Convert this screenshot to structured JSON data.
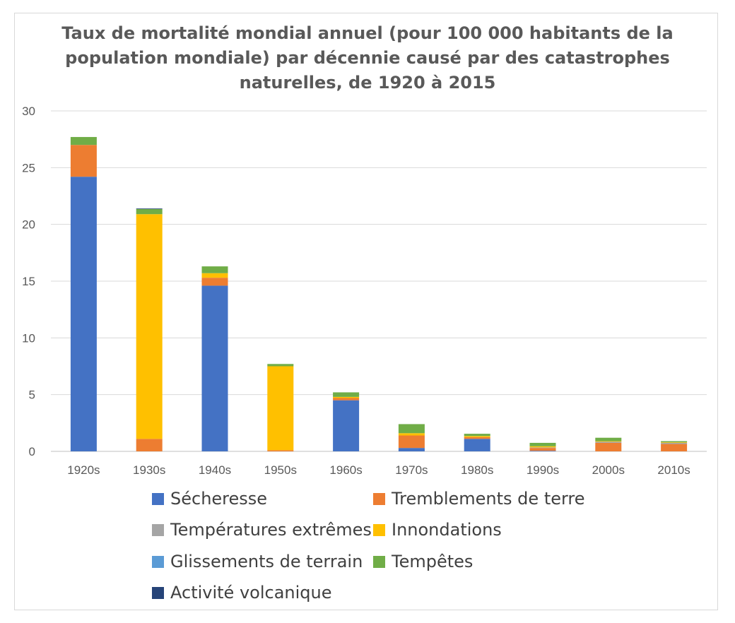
{
  "chart_data": {
    "type": "bar",
    "stacked": true,
    "title_lines": [
      "Taux de mortalité mondial annuel (pour 100 000 habitants de la",
      "population mondiale) par décennie causé par des catastrophes",
      "naturelles, de 1920 à 2015"
    ],
    "xlabel": "",
    "ylabel": "",
    "ylim": [
      0,
      30
    ],
    "yticks": [
      "0",
      "5",
      "10",
      "15",
      "20",
      "25",
      "30"
    ],
    "grid": true,
    "legend_position": "bottom",
    "categories": [
      "1920s",
      "1930s",
      "1940s",
      "1950s",
      "1960s",
      "1970s",
      "1980s",
      "1990s",
      "2000s",
      "2010s"
    ],
    "series": [
      {
        "name": "Sécheresse",
        "color": "#4472c4",
        "values": [
          24.2,
          0.0,
          14.6,
          0.0,
          4.5,
          0.3,
          1.1,
          0.05,
          0.0,
          0.0
        ]
      },
      {
        "name": "Tremblements de terre",
        "color": "#ed7d31",
        "values": [
          2.8,
          1.1,
          0.7,
          0.1,
          0.2,
          1.1,
          0.15,
          0.25,
          0.75,
          0.65
        ]
      },
      {
        "name": "Températures extrêmes",
        "color": "#a5a5a5",
        "values": [
          0.0,
          0.0,
          0.0,
          0.0,
          0.0,
          0.0,
          0.0,
          0.05,
          0.1,
          0.1
        ]
      },
      {
        "name": "Innondations",
        "color": "#ffc000",
        "values": [
          0.0,
          19.8,
          0.4,
          7.4,
          0.1,
          0.2,
          0.1,
          0.1,
          0.05,
          0.05
        ]
      },
      {
        "name": "Glissements de terrain",
        "color": "#5b9bd5",
        "values": [
          0.0,
          0.0,
          0.0,
          0.0,
          0.0,
          0.0,
          0.0,
          0.0,
          0.0,
          0.0
        ]
      },
      {
        "name": "Tempêtes",
        "color": "#70ad47",
        "values": [
          0.7,
          0.45,
          0.6,
          0.2,
          0.4,
          0.8,
          0.2,
          0.3,
          0.3,
          0.1
        ]
      },
      {
        "name": "Activité volcanique",
        "color": "#264478",
        "values": [
          0.0,
          0.05,
          0.0,
          0.0,
          0.0,
          0.0,
          0.0,
          0.0,
          0.0,
          0.0
        ]
      }
    ]
  }
}
